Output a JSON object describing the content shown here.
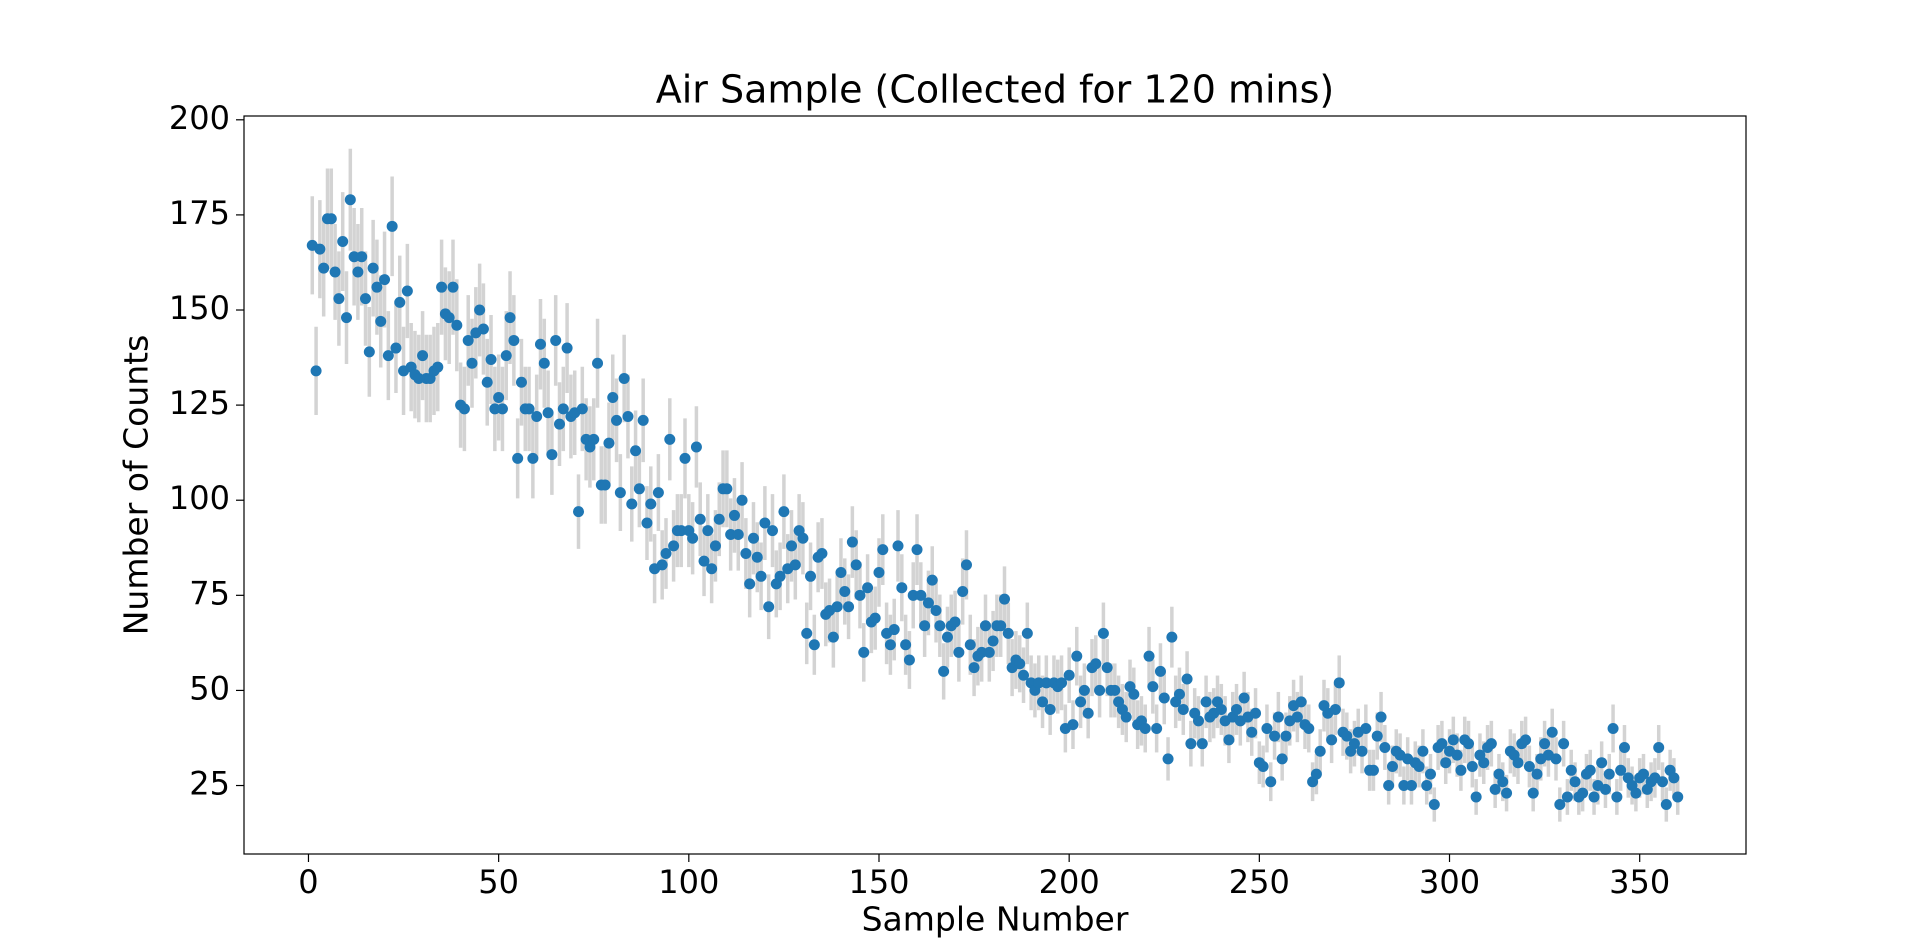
{
  "chart_data": {
    "type": "errorbar-scatter",
    "title": "Air Sample (Collected for 120 mins)",
    "x_label": "Sample Number",
    "y_label": "Number of Counts",
    "color": "#1f77b4",
    "error_color": "#d3d3d3",
    "xlim": [
      -16.95,
      377.95
    ],
    "ylim": [
      7,
      201
    ],
    "xticks": [
      0,
      50,
      100,
      150,
      200,
      250,
      300,
      350
    ],
    "yticks": [
      25,
      50,
      75,
      100,
      125,
      150,
      175,
      200
    ],
    "x": [
      1,
      2,
      3,
      4,
      5,
      6,
      7,
      8,
      9,
      10,
      11,
      12,
      13,
      14,
      15,
      16,
      17,
      18,
      19,
      20,
      21,
      22,
      23,
      24,
      25,
      26,
      27,
      28,
      29,
      30,
      31,
      32,
      33,
      34,
      35,
      36,
      37,
      38,
      39,
      40,
      41,
      42,
      43,
      44,
      45,
      46,
      47,
      48,
      49,
      50,
      51,
      52,
      53,
      54,
      55,
      56,
      57,
      58,
      59,
      60,
      61,
      62,
      63,
      64,
      65,
      66,
      67,
      68,
      69,
      70,
      71,
      72,
      73,
      74,
      75,
      76,
      77,
      78,
      79,
      80,
      81,
      82,
      83,
      84,
      85,
      86,
      87,
      88,
      89,
      90,
      91,
      92,
      93,
      94,
      95,
      96,
      97,
      98,
      99,
      100,
      101,
      102,
      103,
      104,
      105,
      106,
      107,
      108,
      109,
      110,
      111,
      112,
      113,
      114,
      115,
      116,
      117,
      118,
      119,
      120,
      121,
      122,
      123,
      124,
      125,
      126,
      127,
      128,
      129,
      130,
      131,
      132,
      133,
      134,
      135,
      136,
      137,
      138,
      139,
      140,
      141,
      142,
      143,
      144,
      145,
      146,
      147,
      148,
      149,
      150,
      151,
      152,
      153,
      154,
      155,
      156,
      157,
      158,
      159,
      160,
      161,
      162,
      163,
      164,
      165,
      166,
      167,
      168,
      169,
      170,
      171,
      172,
      173,
      174,
      175,
      176,
      177,
      178,
      179,
      180,
      181,
      182,
      183,
      184,
      185,
      186,
      187,
      188,
      189,
      190,
      191,
      192,
      193,
      194,
      195,
      196,
      197,
      198,
      199,
      200,
      201,
      202,
      203,
      204,
      205,
      206,
      207,
      208,
      209,
      210,
      211,
      212,
      213,
      214,
      215,
      216,
      217,
      218,
      219,
      220,
      221,
      222,
      223,
      224,
      225,
      226,
      227,
      228,
      229,
      230,
      231,
      232,
      233,
      234,
      235,
      236,
      237,
      238,
      239,
      240,
      241,
      242,
      243,
      244,
      245,
      246,
      247,
      248,
      249,
      250,
      251,
      252,
      253,
      254,
      255,
      256,
      257,
      258,
      259,
      260,
      261,
      262,
      263,
      264,
      265,
      266,
      267,
      268,
      269,
      270,
      271,
      272,
      273,
      274,
      275,
      276,
      277,
      278,
      279,
      280,
      281,
      282,
      283,
      284,
      285,
      286,
      287,
      288,
      289,
      290,
      291,
      292,
      293,
      294,
      295,
      296,
      297,
      298,
      299,
      300,
      301,
      302,
      303,
      304,
      305,
      306,
      307,
      308,
      309,
      310,
      311,
      312,
      313,
      314,
      315,
      316,
      317,
      318,
      319,
      320,
      321,
      322,
      323,
      324,
      325,
      326,
      327,
      328,
      329,
      330,
      331,
      332,
      333,
      334,
      335,
      336,
      337,
      338,
      339,
      340,
      341,
      342,
      343,
      344,
      345,
      346,
      347,
      348,
      349,
      350,
      351,
      352,
      353,
      354,
      355,
      356,
      357,
      358,
      359,
      360
    ],
    "values": [
      167,
      134,
      166,
      161,
      174,
      174,
      160,
      153,
      168,
      148,
      179,
      164,
      160,
      164,
      153,
      139,
      161,
      156,
      147,
      158,
      138,
      172,
      140,
      152,
      134,
      155,
      135,
      133,
      132,
      138,
      132,
      132,
      134,
      135,
      156,
      149,
      148,
      156,
      146,
      125,
      124,
      142,
      136,
      144,
      150,
      145,
      131,
      137,
      124,
      127,
      124,
      138,
      148,
      142,
      111,
      131,
      124,
      124,
      111,
      122,
      141,
      136,
      123,
      112,
      142,
      120,
      124,
      140,
      122,
      123,
      97,
      124,
      116,
      114,
      116,
      136,
      104,
      104,
      115,
      127,
      121,
      102,
      132,
      122,
      99,
      113,
      103,
      121,
      94,
      99,
      82,
      102,
      83,
      86,
      116,
      88,
      92,
      92,
      111,
      92,
      90,
      114,
      95,
      84,
      92,
      82,
      88,
      95,
      103,
      103,
      91,
      96,
      91,
      100,
      86,
      78,
      90,
      85,
      80,
      94,
      72,
      92,
      78,
      80,
      97,
      82,
      88,
      83,
      92,
      90,
      65,
      80,
      62,
      85,
      86,
      70,
      71,
      64,
      72,
      81,
      76,
      72,
      89,
      83,
      75,
      60,
      77,
      68,
      69,
      81,
      87,
      65,
      62,
      66,
      88,
      77,
      62,
      58,
      75,
      87,
      75,
      67,
      73,
      79,
      71,
      67,
      55,
      64,
      67,
      68,
      60,
      76,
      83,
      62,
      56,
      59,
      60,
      67,
      60,
      63,
      67,
      67,
      74,
      65,
      56,
      58,
      57,
      54,
      65,
      52,
      50,
      52,
      47,
      52,
      45,
      52,
      51,
      52,
      40,
      54,
      41,
      59,
      47,
      50,
      44,
      56,
      57,
      50,
      65,
      56,
      50,
      50,
      47,
      45,
      43,
      51,
      49,
      41,
      42,
      40,
      59,
      51,
      40,
      55,
      48,
      32,
      64,
      47,
      49,
      45,
      53,
      36,
      44,
      42,
      36,
      47,
      43,
      44,
      47,
      45,
      42,
      37,
      43,
      45,
      42,
      48,
      43,
      39,
      44,
      31,
      30,
      40,
      26,
      38,
      43,
      32,
      38,
      42,
      46,
      43,
      47,
      41,
      40,
      26,
      28,
      34,
      46,
      44,
      37,
      45,
      52,
      39,
      38,
      34,
      36,
      39,
      34,
      40,
      29,
      29,
      38,
      43,
      35,
      25,
      30,
      34,
      33,
      25,
      32,
      25,
      31,
      30,
      34,
      25,
      28,
      20,
      35,
      36,
      31,
      34,
      37,
      33,
      29,
      37,
      36,
      30,
      22,
      33,
      31,
      35,
      36,
      24,
      28,
      26,
      23,
      34,
      33,
      31,
      36,
      37,
      30,
      23,
      28,
      32,
      36,
      33,
      39,
      32,
      20,
      36,
      22,
      29,
      26,
      22,
      23,
      28,
      29,
      22,
      25,
      31,
      24,
      28,
      40,
      22,
      29,
      35,
      27,
      25,
      23,
      27,
      28,
      24,
      26,
      27,
      35,
      26,
      20,
      29,
      27,
      22
    ],
    "errors": [
      12.9,
      11.6,
      12.9,
      12.7,
      13.2,
      13.2,
      12.6,
      12.4,
      13.0,
      12.2,
      13.4,
      12.8,
      12.6,
      12.8,
      12.4,
      11.8,
      12.7,
      12.5,
      12.1,
      12.6,
      11.7,
      13.1,
      11.8,
      12.3,
      11.6,
      12.4,
      11.6,
      11.5,
      11.5,
      11.7,
      11.5,
      11.5,
      11.6,
      11.6,
      12.5,
      12.2,
      12.2,
      12.5,
      12.1,
      11.2,
      11.1,
      11.9,
      11.7,
      12.0,
      12.2,
      12.0,
      11.4,
      11.7,
      11.1,
      11.3,
      11.1,
      11.7,
      12.2,
      11.9,
      10.5,
      11.4,
      11.1,
      11.1,
      10.5,
      11.0,
      11.9,
      11.7,
      11.1,
      10.6,
      11.9,
      11.0,
      11.1,
      11.8,
      11.0,
      11.1,
      9.8,
      11.1,
      10.8,
      10.7,
      10.8,
      11.7,
      10.2,
      10.2,
      10.7,
      11.3,
      11.0,
      10.1,
      11.5,
      11.0,
      9.9,
      10.6,
      10.1,
      11.0,
      9.7,
      9.9,
      9.1,
      10.1,
      9.1,
      9.3,
      10.8,
      9.4,
      9.6,
      9.6,
      10.5,
      9.6,
      9.5,
      10.7,
      9.7,
      9.2,
      9.6,
      9.1,
      9.4,
      9.7,
      10.1,
      10.1,
      9.5,
      9.8,
      9.5,
      10.0,
      9.3,
      8.8,
      9.5,
      9.2,
      8.9,
      9.7,
      8.5,
      9.6,
      8.8,
      8.9,
      9.8,
      9.1,
      9.4,
      9.1,
      9.6,
      9.5,
      8.1,
      8.9,
      7.9,
      9.2,
      9.3,
      8.4,
      8.4,
      8.0,
      8.5,
      9.0,
      8.7,
      8.5,
      9.4,
      9.1,
      8.7,
      7.7,
      8.8,
      8.2,
      8.3,
      9.0,
      9.3,
      8.1,
      7.9,
      8.1,
      9.4,
      8.8,
      7.9,
      7.6,
      8.7,
      9.3,
      8.7,
      8.2,
      8.5,
      8.9,
      8.4,
      8.2,
      7.4,
      8.0,
      8.2,
      8.2,
      7.7,
      8.7,
      9.1,
      7.9,
      7.5,
      7.7,
      7.7,
      8.2,
      7.7,
      7.9,
      8.2,
      8.2,
      8.6,
      8.1,
      7.5,
      7.6,
      7.5,
      7.3,
      8.1,
      7.2,
      7.1,
      7.2,
      6.9,
      7.2,
      6.7,
      7.2,
      7.1,
      7.2,
      6.3,
      7.3,
      6.4,
      7.7,
      6.9,
      7.1,
      6.6,
      7.5,
      7.5,
      7.1,
      8.1,
      7.5,
      7.1,
      7.1,
      6.9,
      6.7,
      6.6,
      7.1,
      7.0,
      6.4,
      6.5,
      6.3,
      7.7,
      7.1,
      6.3,
      7.4,
      6.9,
      5.7,
      8.0,
      6.9,
      7.0,
      6.7,
      7.3,
      6.0,
      6.6,
      6.5,
      6.0,
      6.9,
      6.6,
      6.6,
      6.9,
      6.7,
      6.5,
      6.1,
      6.6,
      6.7,
      6.5,
      6.9,
      6.6,
      6.2,
      6.6,
      5.6,
      5.5,
      6.3,
      5.1,
      6.2,
      6.6,
      5.7,
      6.2,
      6.5,
      6.8,
      6.6,
      6.9,
      6.4,
      6.3,
      5.1,
      5.3,
      5.8,
      6.8,
      6.6,
      6.1,
      6.7,
      7.2,
      6.2,
      6.2,
      5.8,
      6.0,
      6.2,
      5.8,
      6.3,
      5.4,
      5.4,
      6.2,
      6.6,
      5.9,
      5.0,
      5.5,
      5.8,
      5.7,
      5.0,
      5.7,
      5.0,
      5.6,
      5.5,
      5.8,
      5.0,
      5.3,
      4.5,
      5.9,
      6.0,
      5.6,
      5.8,
      6.1,
      5.7,
      5.4,
      6.1,
      6.0,
      5.5,
      4.7,
      5.7,
      5.6,
      5.9,
      6.0,
      4.9,
      5.3,
      5.1,
      4.8,
      5.8,
      5.7,
      5.6,
      6.0,
      6.1,
      5.5,
      4.8,
      5.3,
      5.7,
      6.0,
      5.7,
      6.2,
      5.7,
      4.5,
      6.0,
      4.7,
      5.4,
      5.1,
      4.7,
      4.8,
      5.3,
      5.4,
      4.7,
      5.0,
      5.6,
      4.9,
      5.3,
      6.3,
      4.7,
      5.4,
      5.9,
      5.2,
      5.0,
      4.8,
      5.2,
      5.3,
      4.9,
      5.1,
      5.2,
      5.9,
      5.1,
      4.5,
      5.4,
      5.2,
      4.7
    ]
  }
}
